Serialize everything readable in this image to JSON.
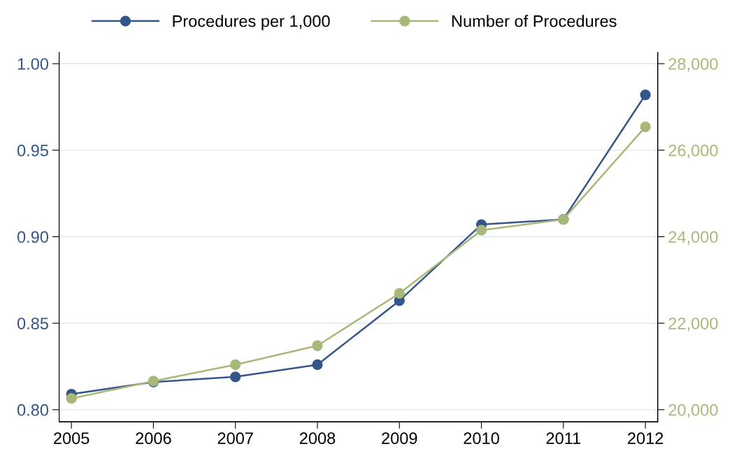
{
  "chart_data": {
    "type": "line",
    "x": [
      2005,
      2006,
      2007,
      2008,
      2009,
      2010,
      2011,
      2012
    ],
    "series": [
      {
        "name": "Procedures per 1,000",
        "color": "#34568b",
        "values": [
          0.809,
          0.816,
          0.819,
          0.826,
          0.863,
          0.907,
          0.91,
          0.982
        ]
      },
      {
        "name": "Number of Procedures",
        "color": "#a8b878",
        "axis": "y2",
        "values": [
          20260,
          20660,
          21040,
          21480,
          22690,
          24150,
          24400,
          26540
        ]
      }
    ],
    "xlim": [
      2004.85,
      2012.15
    ],
    "xticks": [
      2005,
      2006,
      2007,
      2008,
      2009,
      2010,
      2011,
      2012
    ],
    "ylim": [
      0.793,
      1.0065
    ],
    "yticks": [
      {
        "value": 0.8,
        "label": "0.80"
      },
      {
        "value": 0.85,
        "label": "0.85"
      },
      {
        "value": 0.9,
        "label": "0.90"
      },
      {
        "value": 0.95,
        "label": "0.95"
      },
      {
        "value": 1.0,
        "label": "1.00"
      }
    ],
    "y2lim": [
      19720,
      28260
    ],
    "y2ticks": [
      {
        "value": 20000,
        "label": "20,000"
      },
      {
        "value": 22000,
        "label": "22,000"
      },
      {
        "value": 24000,
        "label": "24,000"
      },
      {
        "value": 26000,
        "label": "26,000"
      },
      {
        "value": 28000,
        "label": "28,000"
      }
    ],
    "grid": "y",
    "legend": "top",
    "marker": "circle",
    "line_style": "solid"
  }
}
